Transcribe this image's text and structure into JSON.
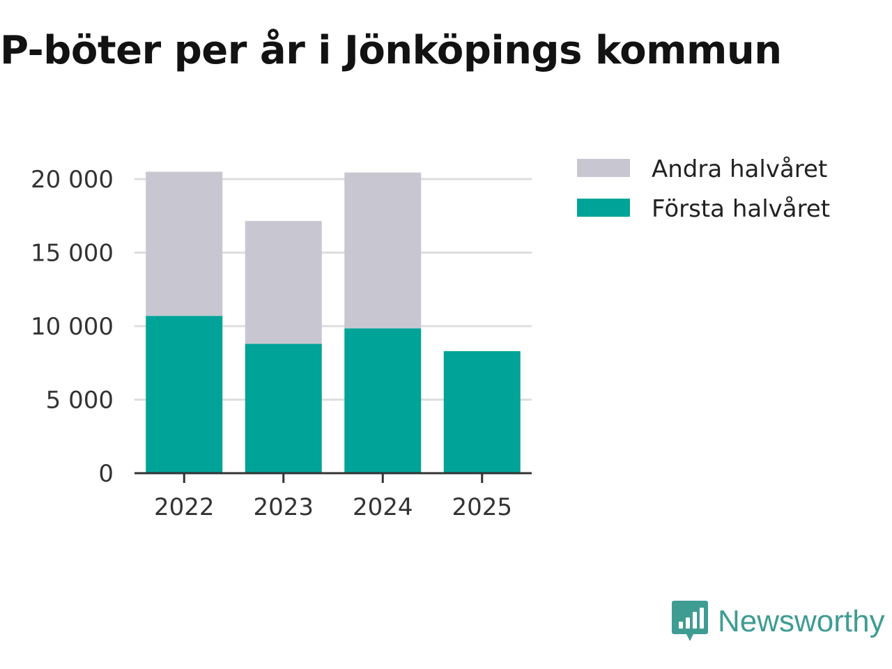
{
  "title": "P-böter per år i Jönköpings kommun",
  "brand": {
    "name": "Newsworthy",
    "logo_icon": "bar-chart-speech-bubble-icon",
    "color": "#3f9c93"
  },
  "colors": {
    "first_half": "#00a398",
    "second_half": "#c8c7d1",
    "grid": "#dedede",
    "axis": "#333333"
  },
  "chart_data": {
    "type": "bar",
    "stacked": true,
    "title": "P-böter per år i Jönköpings kommun",
    "xlabel": "",
    "ylabel": "",
    "categories": [
      "2022",
      "2023",
      "2024",
      "2025"
    ],
    "series": [
      {
        "name": "Första halvåret",
        "values": [
          10700,
          8800,
          9850,
          8300
        ]
      },
      {
        "name": "Andra halvåret",
        "values": [
          9800,
          8350,
          10600,
          0
        ]
      }
    ],
    "ylim": [
      0,
      20000
    ],
    "yticks": [
      0,
      5000,
      10000,
      15000,
      20000
    ],
    "ytick_labels": [
      "0",
      "5 000",
      "10 000",
      "15 000",
      "20 000"
    ],
    "grid": true,
    "legend": {
      "position": "top-right",
      "entries": [
        "Andra halvåret",
        "Första halvåret"
      ]
    }
  }
}
